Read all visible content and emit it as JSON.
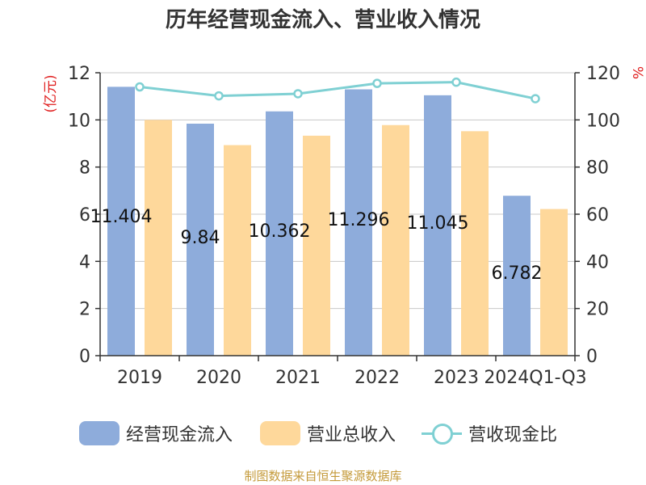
{
  "chart_data": {
    "type": "bar",
    "title": "历年经营现金流入、营业收入情况",
    "categories": [
      "2019",
      "2020",
      "2021",
      "2022",
      "2023",
      "2024Q1-Q3"
    ],
    "ylabel_left": "(亿元)",
    "ylabel_right": "%",
    "ylim_left": [
      0,
      12
    ],
    "ylim_right": [
      0,
      120
    ],
    "yticks_left": [
      "0",
      "2",
      "4",
      "6",
      "8",
      "10",
      "12"
    ],
    "yticks_right": [
      "0",
      "20",
      "40",
      "60",
      "80",
      "100",
      "120"
    ],
    "grid": true,
    "legend_position": "bottom",
    "series": [
      {
        "name": "经营现金流入",
        "kind": "bar",
        "axis": "left",
        "color": "#8eacdb",
        "values": [
          11.404,
          9.84,
          10.362,
          11.296,
          11.045,
          6.782
        ],
        "labels": [
          "11.404",
          "9.84",
          "10.362",
          "11.296",
          "11.045",
          "6.782"
        ]
      },
      {
        "name": "营业总收入",
        "kind": "bar",
        "axis": "left",
        "color": "#fed89b",
        "values": [
          10.0,
          8.93,
          9.33,
          9.78,
          9.52,
          6.22
        ]
      },
      {
        "name": "营收现金比",
        "kind": "line",
        "axis": "right",
        "color": "#7fd0d3",
        "values": [
          114.0,
          110.2,
          111.1,
          115.5,
          116.0,
          109.0
        ]
      }
    ]
  },
  "source_note": "制图数据来自恒生聚源数据库"
}
